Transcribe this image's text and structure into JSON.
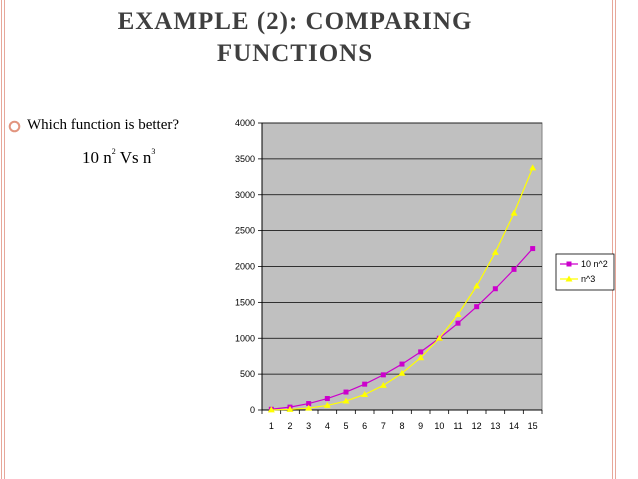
{
  "slide": {
    "title_line1": "EXAMPLE (2): COMPARING",
    "title_line2": "FUNCTIONS",
    "bullet_text": "Which function is better?",
    "formula": {
      "a": "10 n",
      "a_exp": "2",
      "mid": " Vs n",
      "b_exp": "3"
    }
  },
  "colors": {
    "title": "#3f3f3f",
    "border": "#e7a79a",
    "bullet": "#e2957f",
    "plot_bg": "#c0c0c0",
    "series_1": "#cc00cc",
    "series_2": "#ffff00"
  },
  "chart_data": {
    "type": "line",
    "title": "",
    "xlabel": "",
    "ylabel": "",
    "x": [
      1,
      2,
      3,
      4,
      5,
      6,
      7,
      8,
      9,
      10,
      11,
      12,
      13,
      14,
      15
    ],
    "ylim": [
      0,
      4000
    ],
    "yticks": [
      0,
      500,
      1000,
      1500,
      2000,
      2500,
      3000,
      3500,
      4000
    ],
    "grid": "horizontal",
    "legend": "right",
    "series": [
      {
        "name": "10 n^2",
        "marker": "square",
        "color": "#cc00cc",
        "values": [
          10,
          40,
          90,
          160,
          250,
          360,
          490,
          640,
          810,
          1000,
          1210,
          1440,
          1690,
          1960,
          2250
        ]
      },
      {
        "name": "n^3",
        "marker": "triangle",
        "color": "#ffff00",
        "values": [
          1,
          8,
          27,
          64,
          125,
          216,
          343,
          512,
          729,
          1000,
          1331,
          1728,
          2197,
          2744,
          3375
        ]
      }
    ]
  }
}
